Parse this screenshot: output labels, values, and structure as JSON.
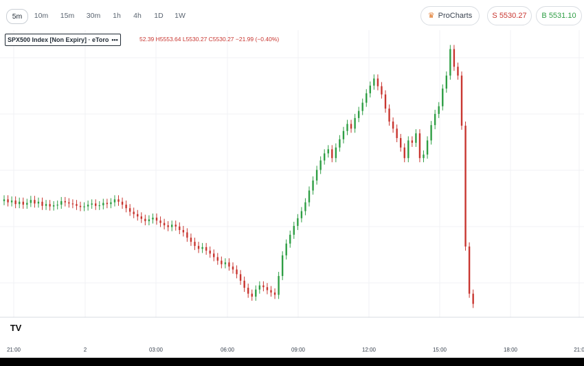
{
  "timeframes": {
    "items": [
      {
        "label": "5m",
        "active": true
      },
      {
        "label": "10m",
        "active": false
      },
      {
        "label": "15m",
        "active": false
      },
      {
        "label": "30m",
        "active": false
      },
      {
        "label": "1h",
        "active": false
      },
      {
        "label": "4h",
        "active": false
      },
      {
        "label": "1D",
        "active": false
      },
      {
        "label": "1W",
        "active": false
      }
    ]
  },
  "header": {
    "prochart_label": "ProCharts",
    "sell_label": "S 5530.27",
    "buy_label": "B 5531.10",
    "sell_color": "#c8352f",
    "buy_color": "#2e9e44"
  },
  "legend": {
    "instrument": "SPX500 Index [Non Expiry] · eToro",
    "menu": "•••",
    "ohlc": "52.39 H5553.64 L5530.27 C5530.27 −21.99 (−0.40%)"
  },
  "x_axis": {
    "ticks": [
      "21:00",
      "2",
      "03:00",
      "06:00",
      "09:00",
      "12:00",
      "15:00",
      "18:00",
      "21:0"
    ]
  },
  "watermark": "TV",
  "chart_data": {
    "type": "line",
    "x_ticks": [
      "21:00",
      "2",
      "03:00",
      "06:00",
      "09:00",
      "12:00",
      "15:00",
      "18:00",
      "21:0"
    ],
    "series": [
      {
        "values": [
          5548,
          5547.5,
          5547.8,
          5547.2,
          5547.6,
          5547.1,
          5547.4,
          5547.9,
          5547.3,
          5547.6,
          5546.9,
          5547.2,
          5546.8,
          5547.0,
          5547.1,
          5547.7,
          5547.5,
          5547.3,
          5547.2,
          5546.9,
          5546.7,
          5546.8,
          5547.1,
          5547.3,
          5546.9,
          5547.0,
          5547.4,
          5547.2,
          5547.5,
          5548.0,
          5547.6,
          5547.1,
          5546.5,
          5545.9,
          5545.5,
          5545.1,
          5544.7,
          5544.3,
          5544.6,
          5544.9,
          5544.4,
          5544.0,
          5543.6,
          5543.3,
          5543.7,
          5543.4,
          5542.8,
          5542.4,
          5541.5,
          5540.8,
          5540.1,
          5539.6,
          5539.9,
          5539.3,
          5538.8,
          5538.2,
          5537.6,
          5537.0,
          5537.3,
          5536.6,
          5536.1,
          5535.3,
          5534.2,
          5533.0,
          5532.0,
          5531.5,
          5532.7,
          5533.4,
          5533.1,
          5532.6,
          5532.2,
          5531.8,
          5535.0,
          5538.5,
          5540.5,
          5542.0,
          5543.5,
          5544.8,
          5546.0,
          5547.5,
          5549.5,
          5551.2,
          5553.0,
          5554.6,
          5555.8,
          5556.5,
          5555.0,
          5556.8,
          5558.2,
          5559.6,
          5560.8,
          5560.0,
          5561.8,
          5563.0,
          5564.4,
          5566.0,
          5567.3,
          5568.5,
          5567.2,
          5565.8,
          5563.4,
          5561.2,
          5560.0,
          5558.4,
          5556.8,
          5555.0,
          5558.0,
          5557.6,
          5559.2,
          5555.0,
          5555.6,
          5558.0,
          5560.6,
          5562.5,
          5563.8,
          5566.8,
          5569.0,
          5573.5,
          5570.5,
          5569.0,
          5560.5,
          5540.0,
          5532.0,
          5530.27
        ],
        "y_range": [
          5528,
          5576
        ]
      }
    ],
    "grid": true
  }
}
